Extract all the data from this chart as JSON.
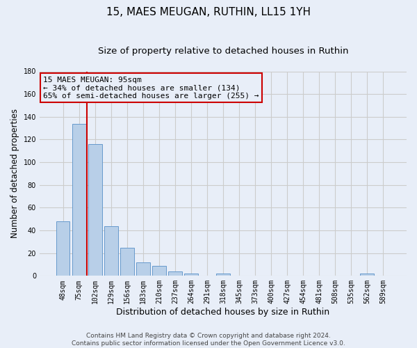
{
  "title1": "15, MAES MEUGAN, RUTHIN, LL15 1YH",
  "title2": "Size of property relative to detached houses in Ruthin",
  "xlabel": "Distribution of detached houses by size in Ruthin",
  "ylabel": "Number of detached properties",
  "bar_labels": [
    "48sqm",
    "75sqm",
    "102sqm",
    "129sqm",
    "156sqm",
    "183sqm",
    "210sqm",
    "237sqm",
    "264sqm",
    "291sqm",
    "318sqm",
    "345sqm",
    "373sqm",
    "400sqm",
    "427sqm",
    "454sqm",
    "481sqm",
    "508sqm",
    "535sqm",
    "562sqm",
    "589sqm"
  ],
  "bar_values": [
    48,
    134,
    116,
    44,
    25,
    12,
    9,
    4,
    2,
    0,
    2,
    0,
    0,
    0,
    0,
    0,
    0,
    0,
    0,
    2,
    0
  ],
  "bar_color": "#b8cfe8",
  "bar_edge_color": "#6699cc",
  "grid_color": "#cccccc",
  "background_color": "#e8eef8",
  "vline_x": 1.5,
  "vline_color": "#cc0000",
  "annotation_line1": "15 MAES MEUGAN: 95sqm",
  "annotation_line2": "← 34% of detached houses are smaller (134)",
  "annotation_line3": "65% of semi-detached houses are larger (255) →",
  "annotation_box_color": "#cc0000",
  "ylim": [
    0,
    180
  ],
  "yticks": [
    0,
    20,
    40,
    60,
    80,
    100,
    120,
    140,
    160,
    180
  ],
  "footnote": "Contains HM Land Registry data © Crown copyright and database right 2024.\nContains public sector information licensed under the Open Government Licence v3.0.",
  "title1_fontsize": 11,
  "title2_fontsize": 9.5,
  "xlabel_fontsize": 9,
  "ylabel_fontsize": 8.5,
  "tick_fontsize": 7,
  "annotation_fontsize": 8,
  "footnote_fontsize": 6.5
}
